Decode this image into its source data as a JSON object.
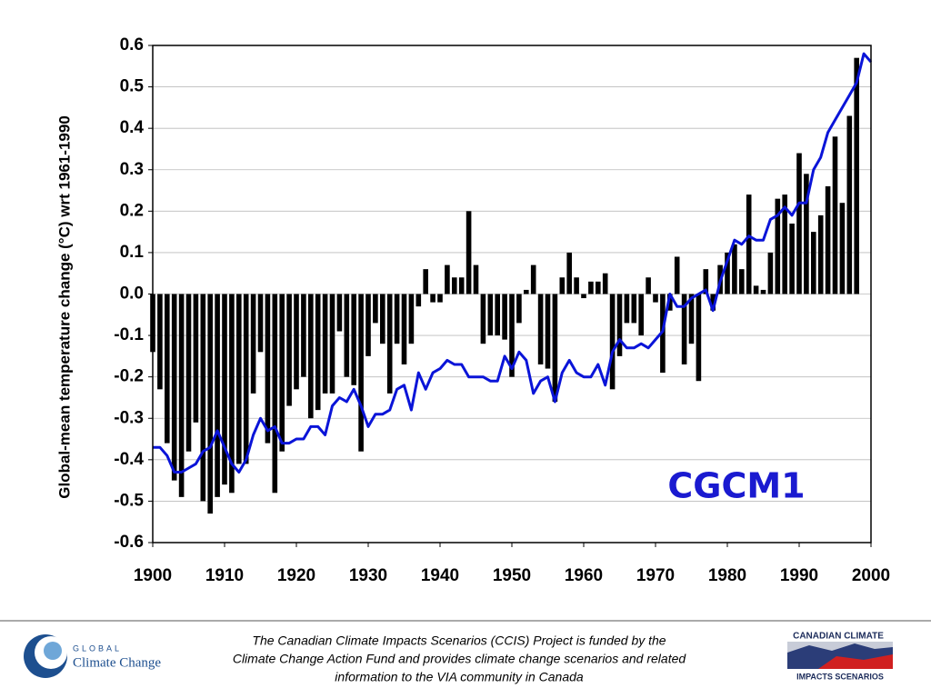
{
  "chart_data": {
    "type": "bar_line",
    "y_label": "Global-mean temperature change (°C) wrt 1961-1990",
    "annotation": "CGCM1",
    "x": [
      1900,
      1901,
      1902,
      1903,
      1904,
      1905,
      1906,
      1907,
      1908,
      1909,
      1910,
      1911,
      1912,
      1913,
      1914,
      1915,
      1916,
      1917,
      1918,
      1919,
      1920,
      1921,
      1922,
      1923,
      1924,
      1925,
      1926,
      1927,
      1928,
      1929,
      1930,
      1931,
      1932,
      1933,
      1934,
      1935,
      1936,
      1937,
      1938,
      1939,
      1940,
      1941,
      1942,
      1943,
      1944,
      1945,
      1946,
      1947,
      1948,
      1949,
      1950,
      1951,
      1952,
      1953,
      1954,
      1955,
      1956,
      1957,
      1958,
      1959,
      1960,
      1961,
      1962,
      1963,
      1964,
      1965,
      1966,
      1967,
      1968,
      1969,
      1970,
      1971,
      1972,
      1973,
      1974,
      1975,
      1976,
      1977,
      1978,
      1979,
      1980,
      1981,
      1982,
      1983,
      1984,
      1985,
      1986,
      1987,
      1988,
      1989,
      1990,
      1991,
      1992,
      1993,
      1994,
      1995,
      1996,
      1997,
      1998,
      1999,
      2000
    ],
    "series": [
      {
        "type": "bar",
        "color": "#000000",
        "values": [
          -0.14,
          -0.23,
          -0.36,
          -0.45,
          -0.49,
          -0.38,
          -0.31,
          -0.5,
          -0.53,
          -0.49,
          -0.46,
          -0.48,
          -0.41,
          -0.41,
          -0.24,
          -0.14,
          -0.36,
          -0.48,
          -0.38,
          -0.27,
          -0.23,
          -0.2,
          -0.3,
          -0.28,
          -0.24,
          -0.24,
          -0.09,
          -0.2,
          -0.22,
          -0.38,
          -0.15,
          -0.07,
          -0.12,
          -0.24,
          -0.12,
          -0.17,
          -0.12,
          -0.03,
          0.06,
          -0.02,
          -0.02,
          0.07,
          0.04,
          0.04,
          0.2,
          0.07,
          -0.12,
          -0.1,
          -0.1,
          -0.11,
          -0.2,
          -0.07,
          0.01,
          0.07,
          -0.17,
          -0.18,
          -0.26,
          0.04,
          0.1,
          0.04,
          -0.01,
          0.03,
          0.03,
          0.05,
          -0.23,
          -0.15,
          -0.07,
          -0.07,
          -0.1,
          0.04,
          -0.02,
          -0.19,
          -0.04,
          0.09,
          -0.17,
          -0.12,
          -0.21,
          0.06,
          -0.04,
          0.07,
          0.1,
          0.12,
          0.06,
          0.24,
          0.02,
          0.01,
          0.1,
          0.23,
          0.24,
          0.17,
          0.34,
          0.29,
          0.15,
          0.19,
          0.26,
          0.38,
          0.22,
          0.43,
          0.57,
          null,
          null
        ]
      },
      {
        "type": "line",
        "color": "#0a14d8",
        "values": [
          -0.37,
          -0.37,
          -0.39,
          -0.43,
          -0.43,
          -0.42,
          -0.41,
          -0.38,
          -0.37,
          -0.33,
          -0.37,
          -0.41,
          -0.43,
          -0.4,
          -0.34,
          -0.3,
          -0.33,
          -0.32,
          -0.36,
          -0.36,
          -0.35,
          -0.35,
          -0.32,
          -0.32,
          -0.34,
          -0.27,
          -0.25,
          -0.26,
          -0.23,
          -0.27,
          -0.32,
          -0.29,
          -0.29,
          -0.28,
          -0.23,
          -0.22,
          -0.28,
          -0.19,
          -0.23,
          -0.19,
          -0.18,
          -0.16,
          -0.17,
          -0.17,
          -0.2,
          -0.2,
          -0.2,
          -0.21,
          -0.21,
          -0.15,
          -0.18,
          -0.14,
          -0.16,
          -0.24,
          -0.21,
          -0.2,
          -0.26,
          -0.19,
          -0.16,
          -0.19,
          -0.2,
          -0.2,
          -0.17,
          -0.22,
          -0.14,
          -0.11,
          -0.13,
          -0.13,
          -0.12,
          -0.13,
          -0.11,
          -0.09,
          0.0,
          -0.03,
          -0.03,
          -0.01,
          0.0,
          0.01,
          -0.04,
          0.03,
          0.08,
          0.13,
          0.12,
          0.14,
          0.13,
          0.13,
          0.18,
          0.19,
          0.21,
          0.19,
          0.22,
          0.22,
          0.3,
          0.33,
          0.39,
          0.42,
          0.45,
          0.48,
          0.51,
          0.58,
          0.56
        ]
      }
    ],
    "xlim": [
      1900,
      2000
    ],
    "xticks": [
      1900,
      1910,
      1920,
      1930,
      1940,
      1950,
      1960,
      1970,
      1980,
      1990,
      2000
    ],
    "ylim": [
      -0.6,
      0.6
    ],
    "yticks": [
      {
        "value": -0.6,
        "label": "-0.6"
      },
      {
        "value": -0.5,
        "label": "-0.5"
      },
      {
        "value": -0.4,
        "label": "-0.4"
      },
      {
        "value": -0.3,
        "label": "-0.3"
      },
      {
        "value": -0.2,
        "label": "-0.2"
      },
      {
        "value": -0.1,
        "label": "-0.1"
      },
      {
        "value": 0,
        "label": "0.0"
      },
      {
        "value": 0.1,
        "label": "0.1"
      },
      {
        "value": 0.2,
        "label": "0.2"
      },
      {
        "value": 0.3,
        "label": "0.3"
      },
      {
        "value": 0.4,
        "label": "0.4"
      },
      {
        "value": 0.5,
        "label": "0.5"
      },
      {
        "value": 0.6,
        "label": "0.6"
      }
    ],
    "grid": true
  },
  "footer": {
    "text": [
      "The Canadian Climate Impacts Scenarios (CCIS) Project is funded by the",
      "Climate Change Action Fund and provides climate change scenarios and related",
      "information to the VIA community in Canada"
    ],
    "left_logo": [
      "GLOBAL",
      "Climate Change"
    ],
    "right_logo": [
      "CANADIAN CLIMATE",
      "IMPACTS SCENARIOS"
    ]
  }
}
